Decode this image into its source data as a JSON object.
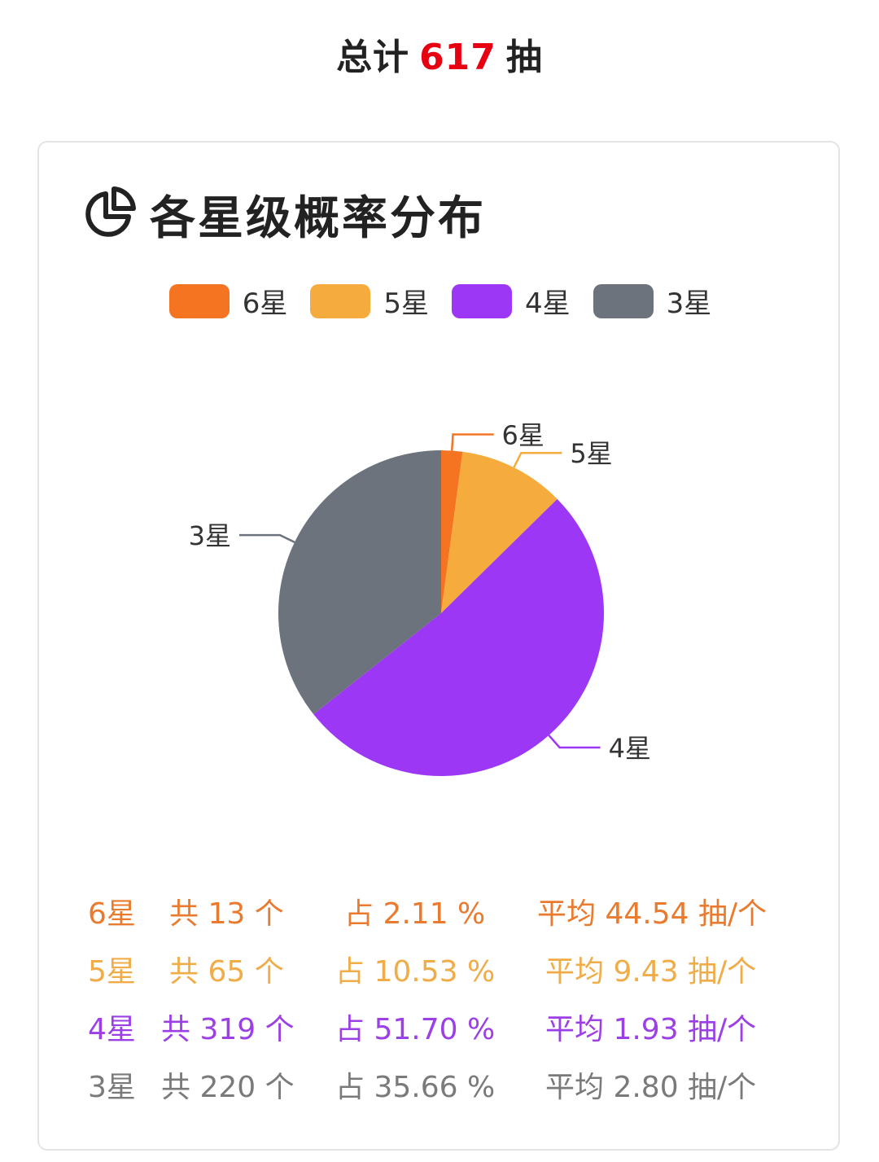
{
  "header": {
    "prefix": "总计",
    "total": "617",
    "suffix": "抽"
  },
  "card": {
    "title": "各星级概率分布",
    "icon": "pie-chart-icon"
  },
  "colors": {
    "star6": "#f47422",
    "star5": "#f6ac3c",
    "star4": "#9c38f5",
    "star3": "#6c737c"
  },
  "chart_data": {
    "type": "pie",
    "legend_position": "top",
    "slices": [
      {
        "label": "6星",
        "value": 13,
        "color": "#f47422"
      },
      {
        "label": "5星",
        "value": 65,
        "color": "#f6ac3c"
      },
      {
        "label": "4星",
        "value": 319,
        "color": "#9c38f5"
      },
      {
        "label": "3星",
        "value": 220,
        "color": "#6c737c"
      }
    ]
  },
  "stats": [
    {
      "star": "6星",
      "count": "共 13 个",
      "percent": "占 2.11 %",
      "avg": "平均 44.54 抽/个",
      "color": "#ea7b2e"
    },
    {
      "star": "5星",
      "count": "共 65 个",
      "percent": "占 10.53 %",
      "avg": "平均 9.43 抽/个",
      "color": "#f0ac47"
    },
    {
      "star": "4星",
      "count": "共 319 个",
      "percent": "占 51.70 %",
      "avg": "平均 1.93 抽/个",
      "color": "#9c40e6"
    },
    {
      "star": "3星",
      "count": "共 220 个",
      "percent": "占 35.66 %",
      "avg": "平均 2.80 抽/个",
      "color": "#7a7a7a"
    }
  ]
}
